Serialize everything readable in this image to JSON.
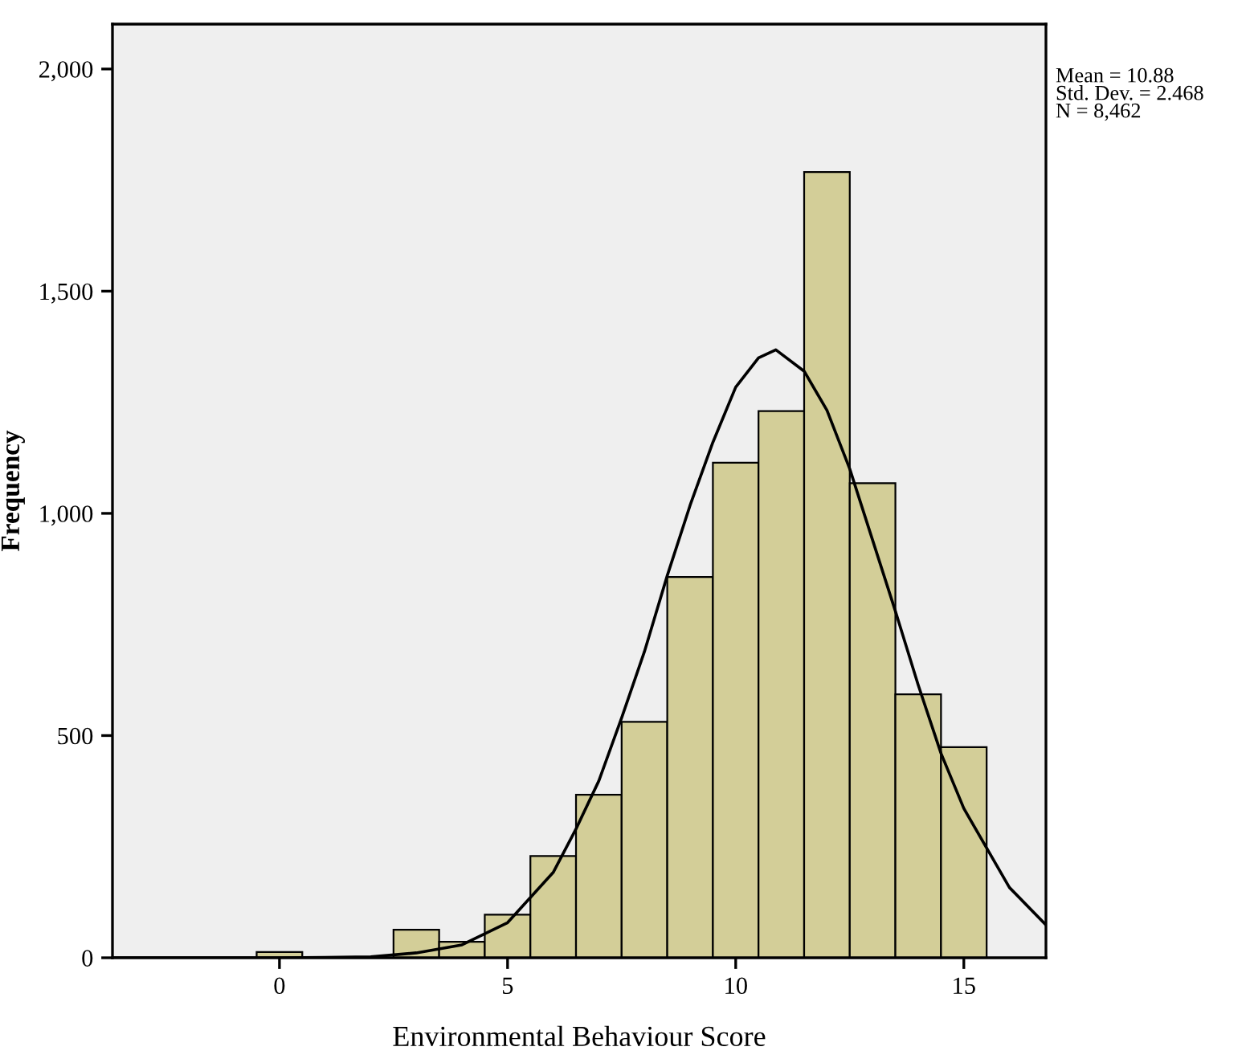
{
  "chart_data": {
    "type": "histogram",
    "xlabel": "Environmental Behaviour Score",
    "ylabel": "Frequency",
    "bins": [
      -0.5,
      0.5,
      1.5,
      2.5,
      3.5,
      4.5,
      5.5,
      6.5,
      7.5,
      8.5,
      9.5,
      10.5,
      11.5,
      12.5,
      13.5,
      14.5,
      15.5
    ],
    "values": [
      13,
      0,
      0,
      63,
      36,
      97,
      229,
      367,
      531,
      857,
      1114,
      1230,
      1768,
      1068,
      593,
      474
    ],
    "color": "#d3ce98",
    "series": [
      {
        "type": "line",
        "color": "#000000",
        "x": [
          -3.66,
          -1,
          0,
          1,
          2,
          3,
          4,
          5,
          6,
          6.5,
          7,
          7.5,
          8,
          8.5,
          9,
          9.5,
          10,
          10.5,
          10.88,
          11.5,
          12,
          12.5,
          13,
          13.5,
          14,
          14.5,
          15,
          16,
          16.8
        ],
        "values": [
          0,
          0,
          0,
          1,
          2,
          11,
          29,
          79,
          192,
          290,
          398,
          540,
          689,
          860,
          1018,
          1160,
          1284,
          1350,
          1368,
          1320,
          1232,
          1100,
          940,
          780,
          614,
          460,
          336,
          158,
          74
        ]
      }
    ],
    "xlim": [
      -3.66,
      16.8
    ],
    "ylim": [
      0,
      2101
    ],
    "xticks": [
      0,
      5,
      10,
      15
    ],
    "yticks": [
      0,
      {
        "value": 500,
        "label": "500"
      },
      {
        "value": 1000,
        "label": "1,000"
      },
      {
        "value": 1500,
        "label": "1,500"
      },
      {
        "value": 2000,
        "label": "2,000"
      }
    ],
    "grid": false,
    "legend": false,
    "annotations": [
      "Mean = 10.88",
      "Std. Dev. = 2.468",
      "N = 8,462"
    ]
  }
}
